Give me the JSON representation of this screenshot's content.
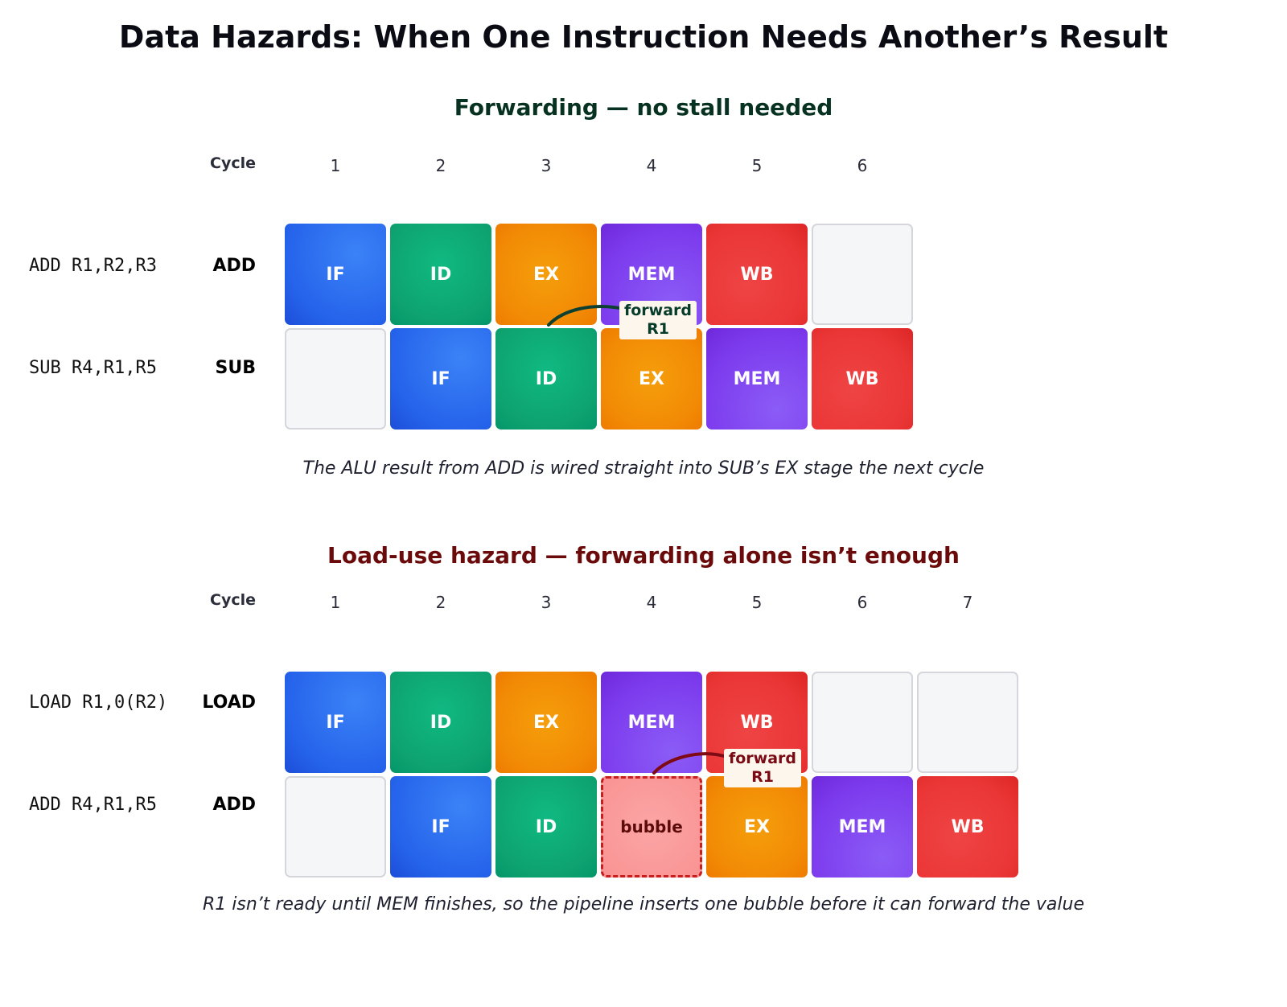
{
  "title": "Data Hazards: When One Instruction Needs Another’s Result",
  "cycle_label": "Cycle",
  "sections": [
    {
      "title": "Forwarding — no stall needed",
      "cycles": [
        "1",
        "2",
        "3",
        "4",
        "5",
        "6"
      ],
      "rows": [
        {
          "instr": "ADD R1,R2,R3",
          "mnemonic": "ADD",
          "cells": [
            "IF",
            "ID",
            "EX",
            "MEM",
            "WB",
            ""
          ]
        },
        {
          "instr": "SUB R4,R1,R5",
          "mnemonic": "SUB",
          "cells": [
            "",
            "IF",
            "ID",
            "EX",
            "MEM",
            "WB"
          ]
        }
      ],
      "forward_label": "forward\nR1",
      "caption": "The ALU result from ADD is wired straight into SUB’s EX stage the next cycle"
    },
    {
      "title": "Load-use hazard — forwarding alone isn’t enough",
      "cycles": [
        "1",
        "2",
        "3",
        "4",
        "5",
        "6",
        "7"
      ],
      "rows": [
        {
          "instr": "LOAD R1,0(R2)",
          "mnemonic": "LOAD",
          "cells": [
            "IF",
            "ID",
            "EX",
            "MEM",
            "WB",
            "",
            ""
          ]
        },
        {
          "instr": "ADD R4,R1,R5",
          "mnemonic": "ADD",
          "cells": [
            "",
            "IF",
            "ID",
            "bubble",
            "EX",
            "MEM",
            "WB"
          ]
        }
      ],
      "forward_label": "forward\nR1",
      "caption": "R1 isn’t ready until MEM finishes, so the pipeline inserts one bubble before it can forward the value"
    }
  ],
  "colors": {
    "IF": "#2563eb",
    "ID": "#0ea370",
    "EX": "#f28a05",
    "MEM": "#7c3aed",
    "WB": "#ea3535",
    "bubble": "#f99393",
    "forward_ok": "#073b2a",
    "forward_hazard": "#7a0b14"
  }
}
